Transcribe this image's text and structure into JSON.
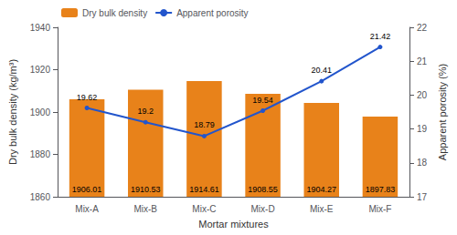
{
  "chart_data": {
    "type": "bar",
    "xlabel": "Mortar mixtures",
    "ylabel": "Dry bulk density (kg/m³)",
    "y2label": "Apparent porosity (%)",
    "categories": [
      "Mix-A",
      "Mix-B",
      "Mix-C",
      "Mix-D",
      "Mix-E",
      "Mix-F"
    ],
    "series": [
      {
        "name": "Dry bulk density",
        "type": "bar",
        "color": "#E8821A",
        "values": [
          1906.01,
          1910.53,
          1914.61,
          1908.55,
          1904.27,
          1897.83
        ]
      },
      {
        "name": "Apparent porosity",
        "type": "line",
        "color": "#2255CC",
        "axis": "y2",
        "values": [
          19.62,
          19.2,
          18.79,
          19.54,
          20.41,
          21.42
        ]
      }
    ],
    "ylim": [
      1860,
      1940
    ],
    "yticks": [
      1860,
      1880,
      1900,
      1920,
      1940
    ],
    "y2lim": [
      17,
      22
    ],
    "y2ticks": [
      17,
      18,
      19,
      20,
      21,
      22
    ],
    "legend": "upper left",
    "grid": false,
    "data_labels": true
  }
}
